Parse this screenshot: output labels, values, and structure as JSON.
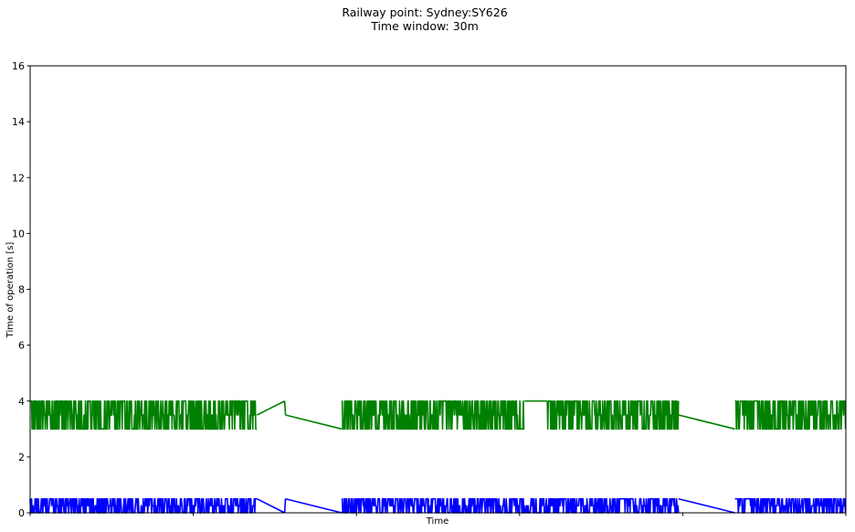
{
  "chart_data": {
    "type": "line",
    "title": [
      "Railway point: Sydney:SY626",
      "Time window: 30m"
    ],
    "xlabel": "Time",
    "ylabel": "Time of operation [s]",
    "ylim": [
      0,
      16
    ],
    "yticks": [
      0,
      2,
      4,
      6,
      8,
      10,
      12,
      14,
      16
    ],
    "xlim": [
      0,
      100
    ],
    "xticks": [
      0,
      20,
      40,
      60,
      80,
      100
    ],
    "grid": false,
    "series": [
      {
        "color": "#008000",
        "segments": [
          {
            "kind": "noise",
            "x0": 0.0,
            "x1": 27.8,
            "low": 3.0,
            "high": 4.0,
            "seed": 11
          },
          {
            "kind": "line",
            "x": [
              27.8,
              31.2
            ],
            "y": [
              3.5,
              4.0
            ]
          },
          {
            "kind": "line",
            "x": [
              31.2,
              31.3
            ],
            "y": [
              4.0,
              3.5
            ]
          },
          {
            "kind": "line",
            "x": [
              31.3,
              38.2
            ],
            "y": [
              3.5,
              3.0
            ]
          },
          {
            "kind": "noise",
            "x0": 38.2,
            "x1": 60.6,
            "low": 3.0,
            "high": 4.0,
            "seed": 23
          },
          {
            "kind": "line",
            "x": [
              60.6,
              63.4
            ],
            "y": [
              4.0,
              4.0
            ]
          },
          {
            "kind": "noise",
            "x0": 63.4,
            "x1": 79.5,
            "low": 3.0,
            "high": 4.0,
            "seed": 37
          },
          {
            "kind": "line",
            "x": [
              79.5,
              86.4
            ],
            "y": [
              3.5,
              3.0
            ]
          },
          {
            "kind": "noise",
            "x0": 86.4,
            "x1": 100.0,
            "low": 3.0,
            "high": 4.0,
            "seed": 53
          }
        ]
      },
      {
        "color": "#0000ff",
        "segments": [
          {
            "kind": "noise",
            "x0": 0.0,
            "x1": 27.8,
            "low": 0.0,
            "high": 0.5,
            "seed": 71
          },
          {
            "kind": "line",
            "x": [
              27.8,
              31.2
            ],
            "y": [
              0.5,
              0.0
            ]
          },
          {
            "kind": "line",
            "x": [
              31.2,
              31.3
            ],
            "y": [
              0.0,
              0.5
            ]
          },
          {
            "kind": "line",
            "x": [
              31.3,
              38.2
            ],
            "y": [
              0.5,
              0.0
            ]
          },
          {
            "kind": "noise",
            "x0": 38.2,
            "x1": 79.5,
            "low": 0.0,
            "high": 0.5,
            "seed": 89
          },
          {
            "kind": "line",
            "x": [
              79.5,
              86.4
            ],
            "y": [
              0.5,
              0.0
            ]
          },
          {
            "kind": "noise",
            "x0": 86.4,
            "x1": 100.0,
            "low": 0.0,
            "high": 0.5,
            "seed": 97
          }
        ]
      }
    ]
  }
}
